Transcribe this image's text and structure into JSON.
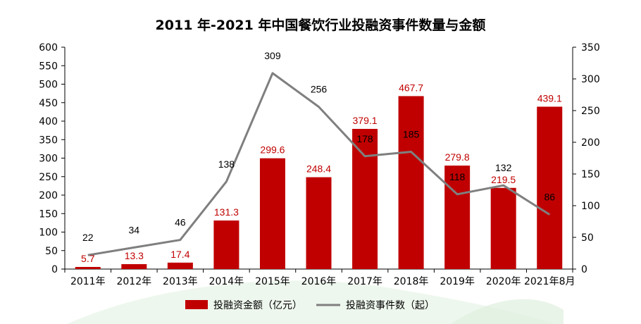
{
  "chart_data": {
    "type": "bar",
    "title": "2011 年-2021 年中国餐饮行业投融资事件数量与金额",
    "categories": [
      "2011年",
      "2012年",
      "2013年",
      "2014年",
      "2015年",
      "2016年",
      "2017年",
      "2018年",
      "2019年",
      "2020年",
      "2021年8月"
    ],
    "series": [
      {
        "name": "投融资金额（亿元）",
        "type": "bar",
        "axis": "left",
        "color": "#c00000",
        "values": [
          5.7,
          13.3,
          17.4,
          131.3,
          299.6,
          248.4,
          379.1,
          467.7,
          279.8,
          219.5,
          439.1
        ],
        "labels": [
          "5.7",
          "13.3",
          "17.4",
          "131.3",
          "299.6",
          "248.4",
          "379.1",
          "467.7",
          "279.8",
          "219.5",
          "439.1"
        ]
      },
      {
        "name": "投融资事件数（起）",
        "type": "line",
        "axis": "right",
        "color": "#7f7f7f",
        "values": [
          22,
          34,
          46,
          138,
          309,
          256,
          178,
          185,
          118,
          132,
          86
        ],
        "labels": [
          "22",
          "34",
          "46",
          "138",
          "309",
          "256",
          "178",
          "185",
          "118",
          "132",
          "86"
        ]
      }
    ],
    "y_left": {
      "min": 0,
      "max": 600,
      "ticks": [
        "0",
        "50",
        "100",
        "150",
        "200",
        "250",
        "300",
        "350",
        "400",
        "450",
        "500",
        "550",
        "600"
      ]
    },
    "y_right": {
      "min": 0,
      "max": 350,
      "ticks": [
        "0",
        "50",
        "100",
        "150",
        "200",
        "250",
        "300",
        "350"
      ]
    },
    "grid": false,
    "legend_position": "bottom"
  }
}
